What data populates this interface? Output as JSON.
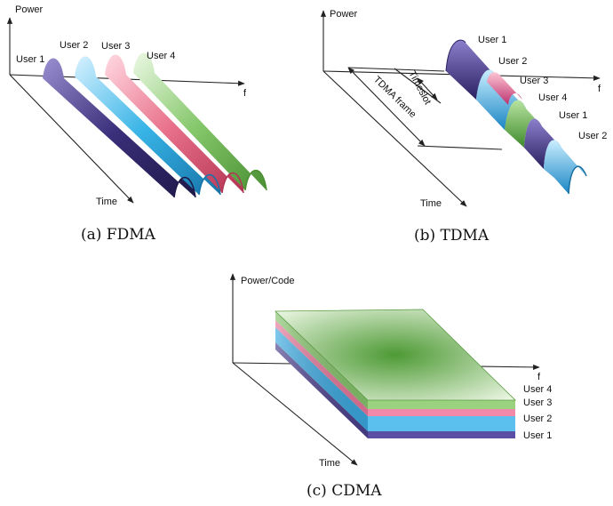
{
  "fdma": {
    "y_axis": "Power",
    "x_axis": "f",
    "time_axis": "Time",
    "users": [
      "User 1",
      "User 2",
      "User 3",
      "User 4"
    ],
    "caption": "(a) FDMA"
  },
  "tdma": {
    "y_axis": "Power",
    "x_axis": "f",
    "time_axis": "Time",
    "timeslot": "Timeslot",
    "frame": "TDMA frame",
    "users": [
      "User 1",
      "User 2",
      "User 3",
      "User 4",
      "User 1",
      "User 2"
    ],
    "caption": "(b) TDMA"
  },
  "cdma": {
    "y_axis": "Power/Code",
    "x_axis": "f",
    "time_axis": "Time",
    "users": [
      "User 4",
      "User 3",
      "User 2",
      "User 1"
    ],
    "caption": "(c) CDMA"
  },
  "colors": {
    "user1": "#3a2f7a",
    "user2": "#38b4e6",
    "user3": "#e8708a",
    "user4": "#7fc46a",
    "cdma_top": "#5aa63c"
  }
}
